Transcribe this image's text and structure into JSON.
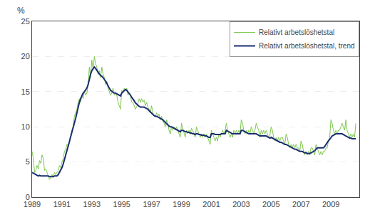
{
  "chart_data": {
    "type": "line",
    "ylabel": "%",
    "x": [
      1989.0,
      1989.083,
      1989.167,
      1989.25,
      1989.333,
      1989.417,
      1989.5,
      1989.583,
      1989.667,
      1989.75,
      1989.833,
      1989.917,
      1990.0,
      1990.083,
      1990.167,
      1990.25,
      1990.333,
      1990.417,
      1990.5,
      1990.583,
      1990.667,
      1990.75,
      1990.833,
      1990.917,
      1991.0,
      1991.083,
      1991.167,
      1991.25,
      1991.333,
      1991.417,
      1991.5,
      1991.583,
      1991.667,
      1991.75,
      1991.833,
      1991.917,
      1992.0,
      1992.083,
      1992.167,
      1992.25,
      1992.333,
      1992.417,
      1992.5,
      1992.583,
      1992.667,
      1992.75,
      1992.833,
      1992.917,
      1993.0,
      1993.083,
      1993.167,
      1993.25,
      1993.333,
      1993.417,
      1993.5,
      1993.583,
      1993.667,
      1993.75,
      1993.833,
      1993.917,
      1994.0,
      1994.083,
      1994.167,
      1994.25,
      1994.333,
      1994.417,
      1994.5,
      1994.583,
      1994.667,
      1994.75,
      1994.833,
      1994.917,
      1995.0,
      1995.083,
      1995.167,
      1995.25,
      1995.333,
      1995.417,
      1995.5,
      1995.583,
      1995.667,
      1995.75,
      1995.833,
      1995.917,
      1996.0,
      1996.083,
      1996.167,
      1996.25,
      1996.333,
      1996.417,
      1996.5,
      1996.583,
      1996.667,
      1996.75,
      1996.833,
      1996.917,
      1997.0,
      1997.083,
      1997.167,
      1997.25,
      1997.333,
      1997.417,
      1997.5,
      1997.583,
      1997.667,
      1997.75,
      1997.833,
      1997.917,
      1998.0,
      1998.083,
      1998.167,
      1998.25,
      1998.333,
      1998.417,
      1998.5,
      1998.583,
      1998.667,
      1998.75,
      1998.833,
      1998.917,
      1999.0,
      1999.083,
      1999.167,
      1999.25,
      1999.333,
      1999.417,
      1999.5,
      1999.583,
      1999.667,
      1999.75,
      1999.833,
      1999.917,
      2000.0,
      2000.083,
      2000.167,
      2000.25,
      2000.333,
      2000.417,
      2000.5,
      2000.583,
      2000.667,
      2000.75,
      2000.833,
      2000.917,
      2001.0,
      2001.083,
      2001.167,
      2001.25,
      2001.333,
      2001.417,
      2001.5,
      2001.583,
      2001.667,
      2001.75,
      2001.833,
      2001.917,
      2002.0,
      2002.083,
      2002.167,
      2002.25,
      2002.333,
      2002.417,
      2002.5,
      2002.583,
      2002.667,
      2002.75,
      2002.833,
      2002.917,
      2003.0,
      2003.083,
      2003.167,
      2003.25,
      2003.333,
      2003.417,
      2003.5,
      2003.583,
      2003.667,
      2003.75,
      2003.833,
      2003.917,
      2004.0,
      2004.083,
      2004.167,
      2004.25,
      2004.333,
      2004.417,
      2004.5,
      2004.583,
      2004.667,
      2004.75,
      2004.833,
      2004.917,
      2005.0,
      2005.083,
      2005.167,
      2005.25,
      2005.333,
      2005.417,
      2005.5,
      2005.583,
      2005.667,
      2005.75,
      2005.833,
      2005.917,
      2006.0,
      2006.083,
      2006.167,
      2006.25,
      2006.333,
      2006.417,
      2006.5,
      2006.583,
      2006.667,
      2006.75,
      2006.833,
      2006.917,
      2007.0,
      2007.083,
      2007.167,
      2007.25,
      2007.333,
      2007.417,
      2007.5,
      2007.583,
      2007.667,
      2007.75,
      2007.833,
      2007.917,
      2008.0,
      2008.083,
      2008.167,
      2008.25,
      2008.333,
      2008.417,
      2008.5,
      2008.583,
      2008.667,
      2008.75,
      2008.833,
      2008.917,
      2009.0,
      2009.083,
      2009.167,
      2009.25,
      2009.333,
      2009.417,
      2009.5,
      2009.583,
      2009.667,
      2009.75,
      2009.833,
      2009.917,
      2010.0,
      2010.083,
      2010.167,
      2010.25,
      2010.333,
      2010.417,
      2010.5,
      2010.583,
      2010.667
    ],
    "series": [
      {
        "name": "Relativt arbetslöshetstal",
        "color": "#7ec850",
        "values": [
          6.5,
          5.5,
          3.5,
          3.8,
          4.5,
          4.0,
          5.2,
          4.8,
          6.0,
          5.5,
          3.8,
          4.0,
          3.5,
          3.0,
          2.5,
          2.8,
          3.2,
          2.8,
          3.5,
          3.2,
          3.5,
          3.8,
          4.5,
          4.2,
          5.0,
          5.5,
          6.5,
          6.8,
          7.5,
          7.2,
          8.0,
          8.5,
          9.5,
          10.0,
          11.5,
          12.0,
          12.5,
          13.5,
          14.0,
          13.5,
          14.5,
          14.0,
          15.0,
          14.5,
          14.8,
          16.0,
          18.5,
          17.0,
          19.5,
          18.0,
          20.0,
          19.0,
          18.5,
          17.5,
          18.0,
          17.0,
          18.5,
          17.5,
          17.0,
          16.0,
          16.5,
          15.5,
          15.0,
          14.5,
          14.8,
          15.5,
          14.5,
          14.8,
          14.5,
          13.5,
          13.0,
          12.5,
          15.2,
          14.8,
          15.5,
          15.2,
          15.5,
          14.5,
          14.8,
          14.5,
          13.5,
          13.5,
          13.0,
          12.5,
          12.8,
          13.5,
          14.0,
          13.5,
          14.0,
          13.5,
          13.8,
          13.0,
          13.5,
          12.8,
          12.5,
          12.0,
          13.0,
          12.0,
          11.5,
          11.5,
          12.0,
          11.5,
          11.8,
          11.0,
          11.5,
          10.8,
          10.5,
          10.0,
          11.0,
          10.5,
          9.5,
          9.0,
          10.0,
          9.5,
          10.0,
          9.5,
          10.0,
          9.5,
          9.0,
          8.5,
          10.5,
          9.8,
          9.0,
          8.5,
          9.5,
          9.0,
          9.5,
          9.0,
          9.8,
          9.5,
          9.0,
          8.5,
          10.0,
          9.5,
          9.0,
          8.5,
          9.0,
          8.5,
          9.0,
          8.5,
          9.0,
          8.5,
          8.0,
          7.5,
          9.5,
          9.0,
          8.5,
          8.0,
          8.5,
          8.0,
          9.0,
          8.5,
          9.0,
          9.5,
          9.0,
          9.5,
          10.5,
          9.5,
          9.0,
          8.5,
          9.0,
          8.5,
          9.5,
          9.0,
          9.5,
          9.0,
          9.5,
          9.0,
          11.0,
          10.5,
          9.5,
          9.0,
          9.5,
          9.0,
          9.5,
          9.0,
          10.0,
          9.5,
          9.0,
          9.5,
          10.5,
          10.0,
          9.5,
          8.5,
          9.5,
          9.0,
          9.5,
          9.0,
          9.5,
          9.0,
          8.5,
          8.8,
          10.0,
          9.5,
          8.5,
          8.0,
          8.5,
          8.0,
          8.5,
          8.0,
          8.5,
          8.5,
          8.0,
          7.5,
          9.0,
          8.5,
          7.5,
          7.0,
          7.5,
          7.0,
          7.5,
          7.0,
          7.5,
          7.0,
          7.0,
          6.5,
          8.0,
          7.5,
          6.5,
          6.0,
          6.5,
          6.0,
          6.5,
          6.0,
          7.0,
          7.0,
          6.5,
          6.0,
          7.5,
          7.0,
          6.5,
          6.0,
          6.5,
          6.0,
          6.5,
          6.5,
          7.0,
          7.0,
          8.0,
          8.5,
          11.0,
          10.5,
          9.5,
          9.0,
          9.5,
          9.0,
          9.5,
          9.5,
          10.0,
          10.5,
          10.0,
          9.5,
          11.0,
          9.5,
          9.0,
          8.5,
          9.0,
          8.5,
          9.0,
          8.5,
          10.5
        ]
      },
      {
        "name": "Relativt arbetslöshetstal, trend",
        "color": "#1a2e6e",
        "values": [
          3.5,
          3.4,
          3.3,
          3.2,
          3.1,
          3.0,
          3.1,
          3.0,
          3.0,
          3.0,
          3.0,
          3.0,
          3.0,
          3.0,
          2.9,
          2.9,
          2.9,
          2.9,
          3.0,
          3.0,
          3.0,
          3.2,
          3.5,
          3.8,
          4.2,
          4.7,
          5.3,
          5.9,
          6.5,
          7.2,
          7.9,
          8.6,
          9.2,
          9.8,
          10.5,
          11.2,
          12.0,
          12.8,
          13.5,
          14.0,
          14.5,
          14.8,
          15.0,
          15.2,
          15.5,
          16.0,
          16.8,
          17.5,
          18.0,
          18.3,
          18.5,
          18.3,
          18.0,
          17.8,
          17.5,
          17.3,
          17.2,
          17.0,
          16.8,
          16.5,
          16.2,
          15.8,
          15.5,
          15.2,
          15.0,
          14.9,
          14.8,
          14.8,
          14.7,
          14.6,
          14.5,
          14.4,
          14.8,
          15.0,
          15.2,
          15.3,
          15.2,
          15.0,
          14.8,
          14.5,
          14.2,
          14.0,
          13.7,
          13.4,
          13.2,
          13.0,
          12.9,
          12.8,
          12.8,
          12.8,
          12.8,
          12.7,
          12.6,
          12.5,
          12.3,
          12.1,
          12.0,
          11.8,
          11.6,
          11.5,
          11.5,
          11.4,
          11.3,
          11.2,
          11.1,
          11.0,
          10.8,
          10.6,
          10.5,
          10.3,
          10.1,
          10.0,
          10.0,
          9.9,
          9.8,
          9.7,
          9.6,
          9.5,
          9.4,
          9.3,
          9.5,
          9.5,
          9.4,
          9.3,
          9.3,
          9.2,
          9.2,
          9.1,
          9.1,
          9.0,
          9.0,
          8.9,
          9.0,
          9.0,
          8.9,
          8.9,
          8.8,
          8.8,
          8.8,
          8.7,
          8.7,
          8.6,
          8.5,
          8.5,
          9.0,
          9.0,
          9.0,
          8.9,
          8.9,
          8.9,
          8.9,
          8.9,
          9.0,
          9.0,
          9.0,
          9.0,
          9.5,
          9.4,
          9.3,
          9.2,
          9.1,
          9.0,
          9.0,
          9.0,
          9.0,
          9.0,
          9.0,
          9.0,
          9.5,
          9.5,
          9.4,
          9.3,
          9.2,
          9.1,
          9.0,
          9.0,
          9.0,
          9.0,
          9.0,
          9.0,
          9.0,
          8.9,
          8.8,
          8.7,
          8.7,
          8.7,
          8.7,
          8.7,
          8.7,
          8.6,
          8.5,
          8.4,
          8.5,
          8.4,
          8.3,
          8.2,
          8.1,
          8.0,
          7.9,
          7.8,
          7.8,
          7.7,
          7.6,
          7.5,
          7.5,
          7.4,
          7.3,
          7.2,
          7.1,
          7.0,
          6.9,
          6.8,
          6.8,
          6.7,
          6.6,
          6.5,
          6.5,
          6.5,
          6.4,
          6.3,
          6.3,
          6.2,
          6.2,
          6.2,
          6.3,
          6.4,
          6.5,
          6.6,
          6.8,
          7.0,
          7.0,
          7.0,
          7.0,
          7.0,
          7.0,
          7.2,
          7.5,
          7.8,
          8.0,
          8.2,
          8.5,
          8.7,
          8.8,
          8.9,
          9.0,
          9.0,
          9.0,
          9.0,
          9.0,
          9.0,
          8.9,
          8.8,
          8.7,
          8.6,
          8.5,
          8.4,
          8.4,
          8.3,
          8.3,
          8.3,
          8.3
        ]
      }
    ],
    "xlim": [
      1989.0,
      2010.9
    ],
    "xticks": [
      1989,
      1991,
      1993,
      1995,
      1997,
      1999,
      2001,
      2003,
      2005,
      2007,
      2009
    ],
    "ylim": [
      0,
      25
    ],
    "yticks": [
      0,
      5,
      10,
      15,
      20,
      25
    ],
    "grid": true,
    "legend": "upper right"
  }
}
